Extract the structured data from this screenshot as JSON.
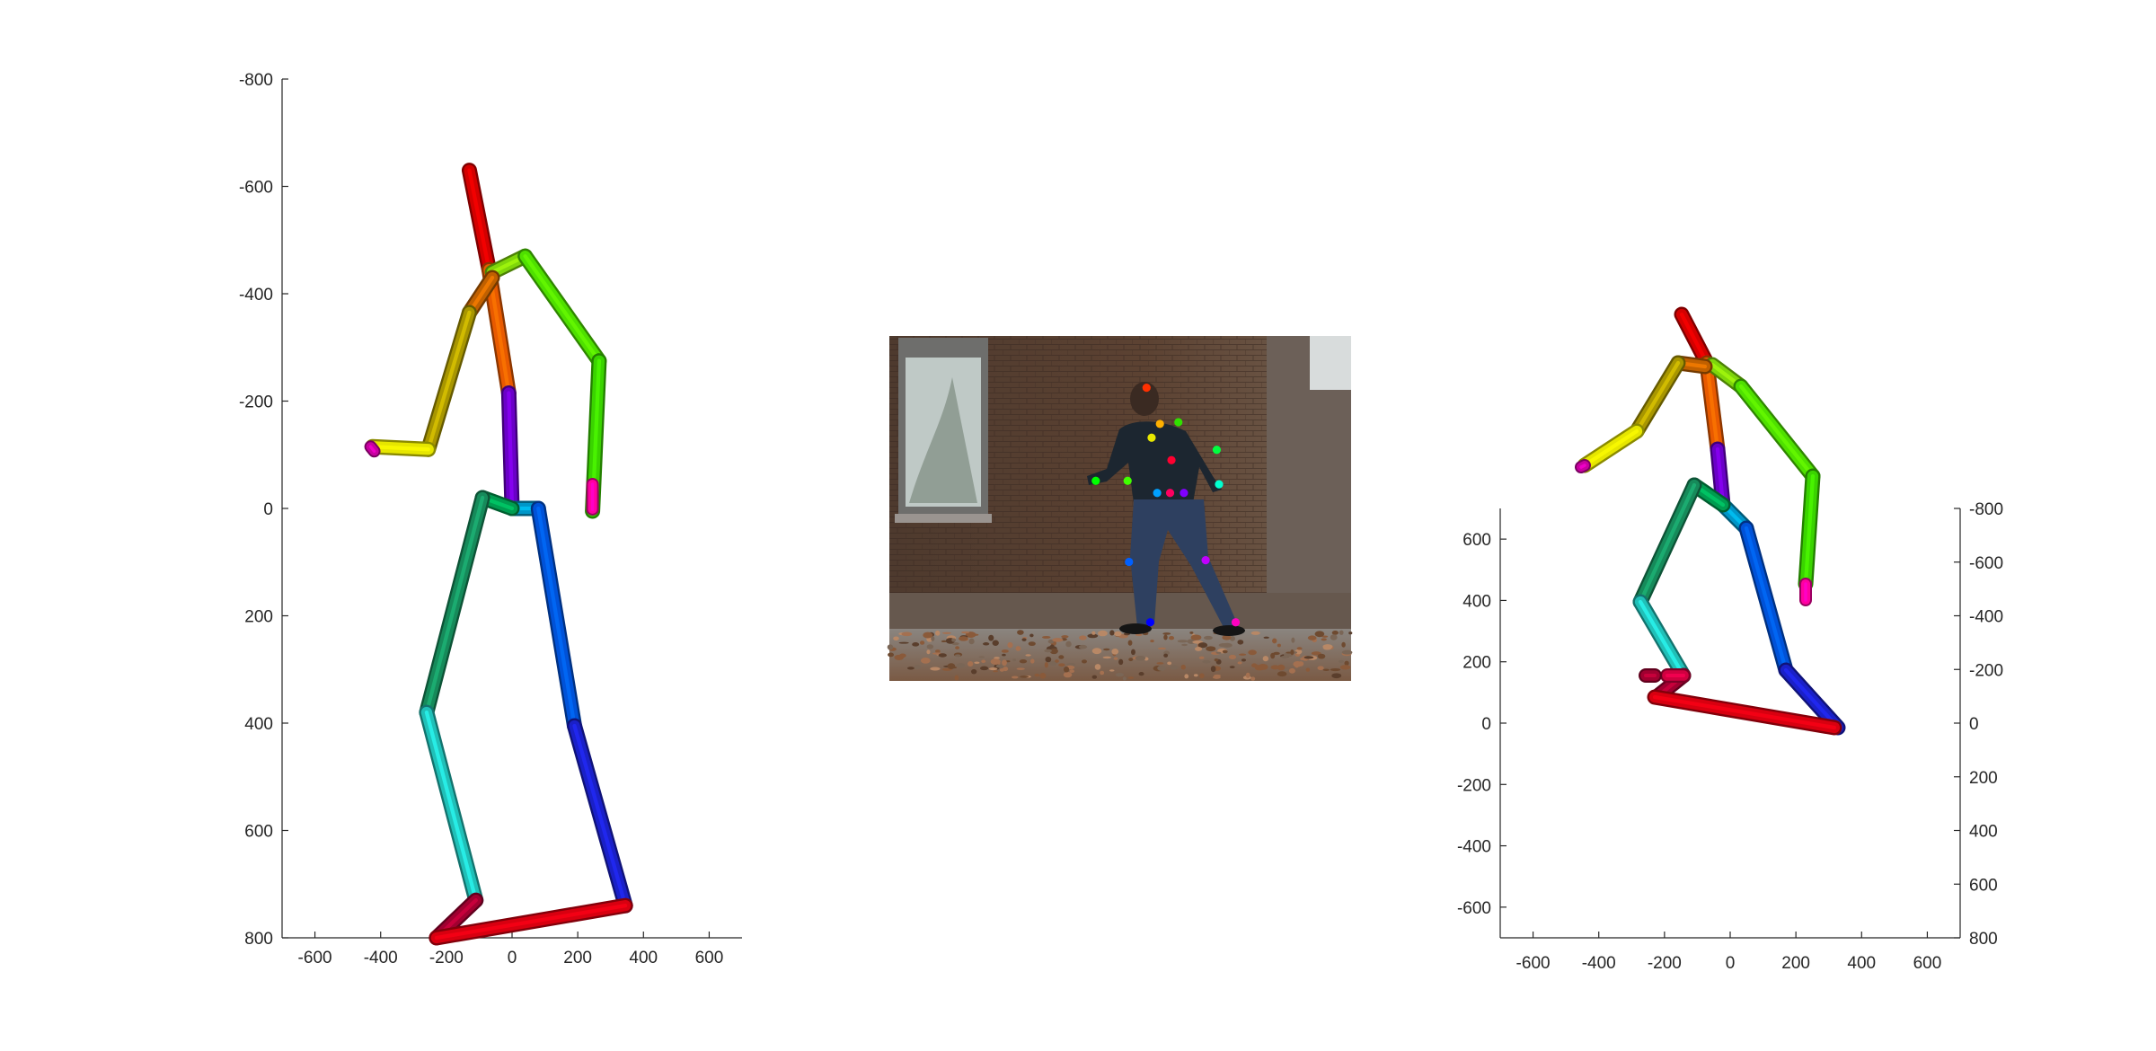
{
  "chart_data": [
    {
      "type": "3d-skeleton",
      "view": "side",
      "xticks": [
        "-600",
        "-400",
        "-200",
        "0",
        "200",
        "400",
        "600"
      ],
      "yticks": [
        "-800",
        "-600",
        "-400",
        "-200",
        "0",
        "200",
        "400",
        "600",
        "800"
      ],
      "xlim": [
        -700,
        700
      ],
      "ylim": [
        -800,
        800
      ],
      "y_reversed": true,
      "grid": false,
      "joints": {
        "head_top": [
          -130,
          -630
        ],
        "neck": [
          -70,
          -445
        ],
        "chest_l": [
          -60,
          -440
        ],
        "r_shoulder": [
          40,
          -470
        ],
        "r_elbow": [
          265,
          -275
        ],
        "r_wrist": [
          245,
          5
        ],
        "l_shoulder": [
          -60,
          -430
        ],
        "l_elbow": [
          -130,
          -365
        ],
        "l_wrist2": [
          -255,
          -110
        ],
        "l_hand": [
          -425,
          -115
        ],
        "spine_mid": [
          -10,
          -215
        ],
        "pelvis": [
          0,
          0
        ],
        "hip_r": [
          80,
          0
        ],
        "hip_l": [
          -90,
          -20
        ],
        "r_knee": [
          190,
          405
        ],
        "r_ankle": [
          345,
          740
        ],
        "l_knee": [
          -260,
          380
        ],
        "l_ankle": [
          -110,
          730
        ],
        "l_toe": [
          -230,
          800
        ]
      },
      "bones": [
        {
          "from": "head_top",
          "to": "neck",
          "color": "#d40000"
        },
        {
          "from": "neck",
          "to": "spine_mid",
          "color": "#e85a00"
        },
        {
          "from": "spine_mid",
          "to": "pelvis",
          "color": "#6a00c8"
        },
        {
          "from": "chest_l",
          "to": "r_shoulder",
          "color": "#7fd60a"
        },
        {
          "from": "r_shoulder",
          "to": "r_elbow",
          "color": "#4fe000"
        },
        {
          "from": "r_elbow",
          "to": "r_wrist",
          "color": "#3ad400"
        },
        {
          "from": "r_wrist",
          "to": "r_wrist",
          "color": "#ff00a0"
        },
        {
          "from": "l_shoulder",
          "to": "l_elbow",
          "color": "#c06000"
        },
        {
          "from": "l_elbow",
          "to": "l_wrist2",
          "color": "#a89600"
        },
        {
          "from": "l_wrist2",
          "to": "l_hand",
          "color": "#e6e600"
        },
        {
          "from": "pelvis",
          "to": "hip_r",
          "color": "#0096c8"
        },
        {
          "from": "pelvis",
          "to": "hip_l",
          "color": "#009c50"
        },
        {
          "from": "hip_r",
          "to": "r_knee",
          "color": "#0052d8"
        },
        {
          "from": "r_knee",
          "to": "r_ankle",
          "color": "#1a20c8"
        },
        {
          "from": "hip_l",
          "to": "l_knee",
          "color": "#168a5a"
        },
        {
          "from": "l_knee",
          "to": "l_ankle",
          "color": "#20c0b8"
        },
        {
          "from": "l_ankle",
          "to": "l_toe",
          "color": "#a00030"
        },
        {
          "from": "l_toe",
          "to": "r_ankle",
          "color": "#d80010"
        }
      ],
      "end_caps": [
        {
          "at": "l_hand",
          "color": "#c800a0"
        },
        {
          "at": "r_wrist",
          "color": "#ff00a0"
        }
      ]
    },
    {
      "type": "image-with-keypoints",
      "photo_colors": {
        "wall": "#5a4030",
        "ground": "#8a7260",
        "window": "#c8d0d0",
        "person": "#1c2630",
        "jeans": "#2e4060"
      },
      "keypoints": [
        {
          "u": 0.557,
          "v": 0.15,
          "color": "#ff3000"
        },
        {
          "u": 0.586,
          "v": 0.255,
          "color": "#ffb000"
        },
        {
          "u": 0.568,
          "v": 0.295,
          "color": "#e8e800"
        },
        {
          "u": 0.626,
          "v": 0.25,
          "color": "#30e000"
        },
        {
          "u": 0.709,
          "v": 0.33,
          "color": "#00ff40"
        },
        {
          "u": 0.516,
          "v": 0.42,
          "color": "#40ff00"
        },
        {
          "u": 0.447,
          "v": 0.42,
          "color": "#00ff00"
        },
        {
          "u": 0.714,
          "v": 0.43,
          "color": "#00ffd0"
        },
        {
          "u": 0.611,
          "v": 0.36,
          "color": "#ff0030"
        },
        {
          "u": 0.58,
          "v": 0.455,
          "color": "#00a0ff"
        },
        {
          "u": 0.608,
          "v": 0.455,
          "color": "#ff0060"
        },
        {
          "u": 0.638,
          "v": 0.455,
          "color": "#8000ff"
        },
        {
          "u": 0.519,
          "v": 0.655,
          "color": "#0060ff"
        },
        {
          "u": 0.685,
          "v": 0.65,
          "color": "#c000ff"
        },
        {
          "u": 0.565,
          "v": 0.83,
          "color": "#0000ff"
        },
        {
          "u": 0.75,
          "v": 0.83,
          "color": "#ff00c0"
        }
      ]
    },
    {
      "type": "3d-skeleton",
      "view": "oblique",
      "xticks": [
        "-600",
        "-400",
        "-200",
        "0",
        "200",
        "400",
        "600"
      ],
      "yticks_left": [
        "600",
        "400",
        "200",
        "0",
        "-200",
        "-400",
        "-600"
      ],
      "yticks_right": [
        "-800",
        "-600",
        "-400",
        "-200",
        "0",
        "200",
        "400",
        "600",
        "800"
      ],
      "xlim": [
        -700,
        700
      ],
      "ylim": [
        -700,
        700
      ],
      "zlim": [
        -800,
        800
      ],
      "grid": false
    }
  ]
}
